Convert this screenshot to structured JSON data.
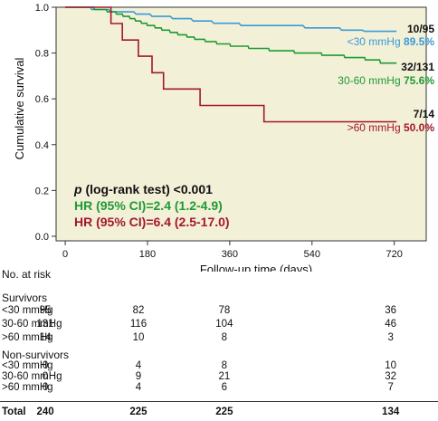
{
  "chart_data": {
    "type": "line",
    "xlabel": "Follow-up time (days)",
    "ylabel": "Cumulative survival",
    "xlim": [
      -20,
      790
    ],
    "ylim": [
      -0.02,
      1.0
    ],
    "xticks": [
      "0",
      "180",
      "360",
      "540",
      "720"
    ],
    "xtick_values": [
      0,
      180,
      360,
      540,
      720
    ],
    "yticks": [
      "0.0",
      "0.2",
      "0.4",
      "0.6",
      "0.8",
      "1.0"
    ],
    "ytick_values": [
      0.0,
      0.2,
      0.4,
      0.6,
      0.8,
      1.0
    ],
    "plot_background": "#f3f0d8",
    "series": [
      {
        "name": "<30 mmHg",
        "color": "#3b9ad6",
        "end_count": "10/95",
        "end_pct": "89.5%",
        "points": [
          [
            0,
            1.0
          ],
          [
            55,
            1.0
          ],
          [
            58,
            0.99
          ],
          [
            95,
            0.99
          ],
          [
            100,
            0.98
          ],
          [
            150,
            0.98
          ],
          [
            155,
            0.97
          ],
          [
            185,
            0.97
          ],
          [
            190,
            0.96
          ],
          [
            230,
            0.96
          ],
          [
            235,
            0.95
          ],
          [
            275,
            0.95
          ],
          [
            280,
            0.94
          ],
          [
            320,
            0.94
          ],
          [
            325,
            0.93
          ],
          [
            380,
            0.93
          ],
          [
            385,
            0.92
          ],
          [
            520,
            0.92
          ],
          [
            525,
            0.91
          ],
          [
            600,
            0.91
          ],
          [
            605,
            0.9
          ],
          [
            650,
            0.9
          ],
          [
            655,
            0.895
          ],
          [
            725,
            0.895
          ]
        ]
      },
      {
        "name": "30-60 mmHg",
        "color": "#1f9a34",
        "end_count": "32/131",
        "end_pct": "75.6%",
        "points": [
          [
            0,
            1.0
          ],
          [
            62,
            1.0
          ],
          [
            64,
            0.99
          ],
          [
            90,
            0.99
          ],
          [
            92,
            0.98
          ],
          [
            110,
            0.98
          ],
          [
            112,
            0.97
          ],
          [
            125,
            0.97
          ],
          [
            127,
            0.96
          ],
          [
            140,
            0.96
          ],
          [
            142,
            0.95
          ],
          [
            152,
            0.95
          ],
          [
            154,
            0.94
          ],
          [
            165,
            0.94
          ],
          [
            167,
            0.93
          ],
          [
            178,
            0.93
          ],
          [
            180,
            0.92
          ],
          [
            195,
            0.92
          ],
          [
            197,
            0.91
          ],
          [
            210,
            0.91
          ],
          [
            212,
            0.9
          ],
          [
            228,
            0.9
          ],
          [
            230,
            0.89
          ],
          [
            245,
            0.89
          ],
          [
            247,
            0.88
          ],
          [
            265,
            0.88
          ],
          [
            267,
            0.87
          ],
          [
            282,
            0.87
          ],
          [
            284,
            0.86
          ],
          [
            305,
            0.86
          ],
          [
            307,
            0.85
          ],
          [
            330,
            0.85
          ],
          [
            332,
            0.84
          ],
          [
            360,
            0.84
          ],
          [
            362,
            0.83
          ],
          [
            400,
            0.83
          ],
          [
            402,
            0.82
          ],
          [
            445,
            0.82
          ],
          [
            447,
            0.81
          ],
          [
            500,
            0.81
          ],
          [
            502,
            0.8
          ],
          [
            560,
            0.8
          ],
          [
            562,
            0.79
          ],
          [
            610,
            0.79
          ],
          [
            612,
            0.78
          ],
          [
            655,
            0.78
          ],
          [
            657,
            0.77
          ],
          [
            688,
            0.77
          ],
          [
            690,
            0.756
          ],
          [
            725,
            0.756
          ]
        ]
      },
      {
        "name": ">60 mmHg",
        "color": "#a3182a",
        "end_count": "7/14",
        "end_pct": "50.0%",
        "points": [
          [
            0,
            1.0
          ],
          [
            100,
            1.0
          ],
          [
            100,
            0.929
          ],
          [
            125,
            0.929
          ],
          [
            125,
            0.857
          ],
          [
            160,
            0.857
          ],
          [
            160,
            0.786
          ],
          [
            190,
            0.786
          ],
          [
            190,
            0.714
          ],
          [
            215,
            0.714
          ],
          [
            215,
            0.643
          ],
          [
            295,
            0.643
          ],
          [
            295,
            0.571
          ],
          [
            435,
            0.571
          ],
          [
            435,
            0.5
          ],
          [
            725,
            0.5
          ]
        ]
      }
    ],
    "annotations": {
      "logrank_p": "p",
      "logrank_rest": " (log-rank test) <0.001",
      "hr1": "HR (95% CI)=2.4 (1.2-4.9)",
      "hr2": "HR (95% CI)=6.4 (2.5-17.0)"
    }
  },
  "risk_table": {
    "title": "No. at risk",
    "sections": [
      {
        "heading": "Survivors",
        "rows": [
          {
            "label": "<30 mmHg",
            "values": [
              "95",
              "82",
              "78",
              "36"
            ]
          },
          {
            "label": "30-60 mmHg",
            "values": [
              "131",
              "116",
              "104",
              "46"
            ]
          },
          {
            "label": ">60 mmHg",
            "values": [
              "14",
              "10",
              "8",
              "3"
            ]
          }
        ]
      },
      {
        "heading": "Non-survivors",
        "rows": [
          {
            "label": "<30 mmHg",
            "values": [
              "0",
              "4",
              "8",
              "10"
            ]
          },
          {
            "label": "30-60 mmHg",
            "values": [
              "0",
              "9",
              "21",
              "32"
            ]
          },
          {
            "label": ">60 mmHg",
            "values": [
              "0",
              "4",
              "6",
              "7"
            ]
          }
        ]
      }
    ],
    "total": {
      "label": "Total",
      "values": [
        "240",
        "225",
        "225",
        "134"
      ]
    }
  }
}
